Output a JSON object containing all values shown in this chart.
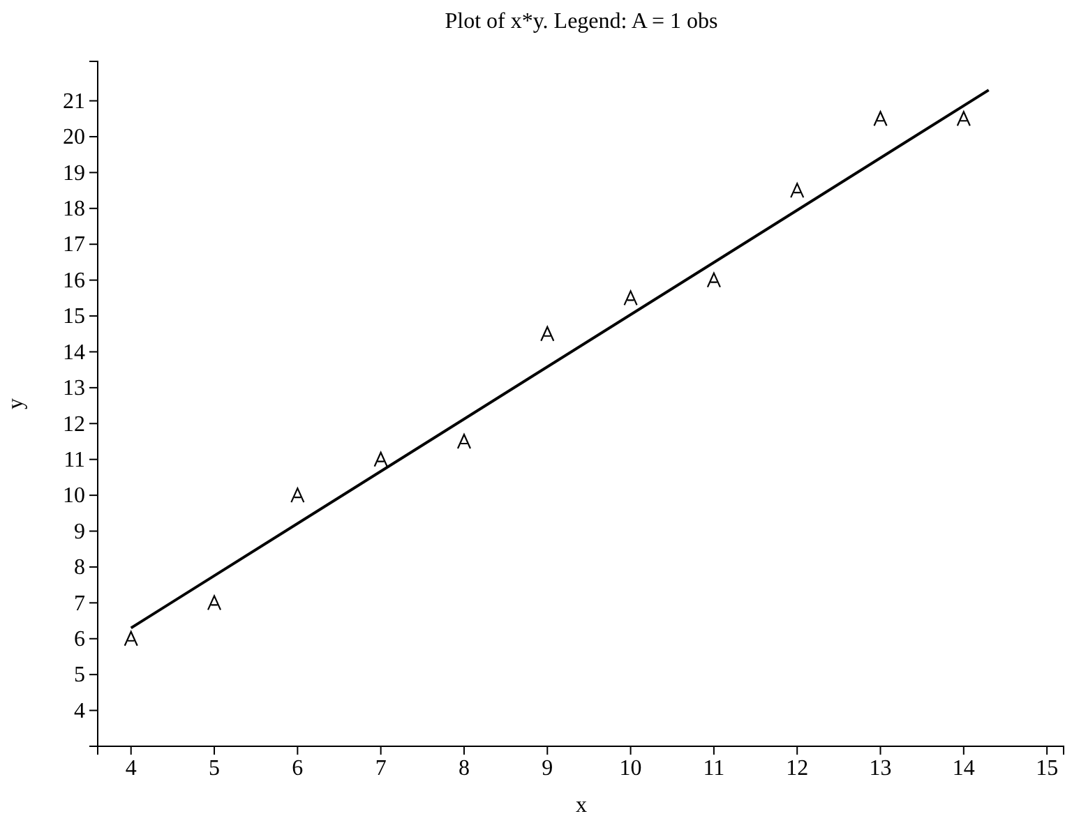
{
  "chart_data": {
    "type": "scatter",
    "title": "Plot of x*y. Legend: A = 1 obs",
    "xlabel": "x",
    "ylabel": "y",
    "xlim": [
      3.6,
      15.2
    ],
    "xticks": [
      4,
      5,
      6,
      7,
      8,
      9,
      10,
      11,
      12,
      13,
      14,
      15
    ],
    "ylim": [
      3,
      22.1
    ],
    "yticks": [
      4,
      5,
      6,
      7,
      8,
      9,
      10,
      11,
      12,
      13,
      14,
      15,
      16,
      17,
      18,
      19,
      20,
      21
    ],
    "series": [
      {
        "color": "#000000",
        "x": [
          4,
          5,
          6,
          7,
          8,
          9,
          10,
          11,
          12,
          13,
          14
        ],
        "values": [
          6,
          7,
          10,
          11,
          11.5,
          14.5,
          15.5,
          16,
          18.5,
          20.5,
          20.5
        ]
      },
      {
        "type": "line",
        "color": "#000000",
        "x": [
          4,
          14.3
        ],
        "values": [
          6.3,
          21.3
        ]
      }
    ]
  }
}
